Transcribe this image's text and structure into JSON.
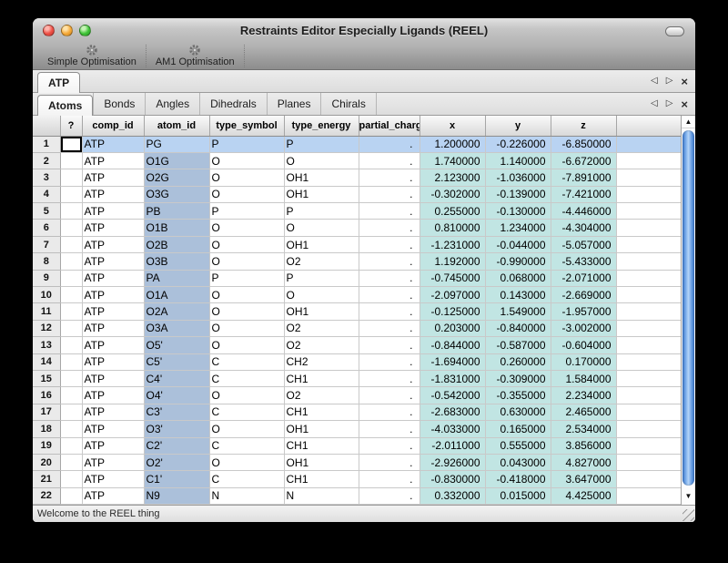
{
  "window": {
    "title": "Restraints Editor Especially Ligands (REEL)"
  },
  "toolbar": {
    "items": [
      {
        "label": "Simple Optimisation",
        "icon": "gear-icon"
      },
      {
        "label": "AM1 Optimisation",
        "icon": "gear-icon"
      }
    ]
  },
  "nav_icons": {
    "left": "◁",
    "right": "▷",
    "close": "×"
  },
  "scroll_icons": {
    "up": "▲",
    "down": "▼"
  },
  "document_tabs": [
    {
      "label": "ATP",
      "active": true
    }
  ],
  "section_tabs": [
    {
      "label": "Atoms",
      "active": true
    },
    {
      "label": "Bonds",
      "active": false
    },
    {
      "label": "Angles",
      "active": false
    },
    {
      "label": "Dihedrals",
      "active": false
    },
    {
      "label": "Planes",
      "active": false
    },
    {
      "label": "Chirals",
      "active": false
    }
  ],
  "grid": {
    "columns": [
      "?",
      "comp_id",
      "atom_id",
      "type_symbol",
      "type_energy",
      "partial_charge",
      "x",
      "y",
      "z"
    ],
    "fields": [
      "comp_id",
      "atom_id",
      "type_symbol",
      "type_energy",
      "partial_charge",
      "x",
      "y",
      "z"
    ],
    "selected_row_index": 0,
    "rows": [
      [
        "ATP",
        "PG",
        "P",
        "P",
        ".",
        "1.200000",
        "-0.226000",
        "-6.850000"
      ],
      [
        "ATP",
        "O1G",
        "O",
        "O",
        ".",
        "1.740000",
        "1.140000",
        "-6.672000"
      ],
      [
        "ATP",
        "O2G",
        "O",
        "OH1",
        ".",
        "2.123000",
        "-1.036000",
        "-7.891000"
      ],
      [
        "ATP",
        "O3G",
        "O",
        "OH1",
        ".",
        "-0.302000",
        "-0.139000",
        "-7.421000"
      ],
      [
        "ATP",
        "PB",
        "P",
        "P",
        ".",
        "0.255000",
        "-0.130000",
        "-4.446000"
      ],
      [
        "ATP",
        "O1B",
        "O",
        "O",
        ".",
        "0.810000",
        "1.234000",
        "-4.304000"
      ],
      [
        "ATP",
        "O2B",
        "O",
        "OH1",
        ".",
        "-1.231000",
        "-0.044000",
        "-5.057000"
      ],
      [
        "ATP",
        "O3B",
        "O",
        "O2",
        ".",
        "1.192000",
        "-0.990000",
        "-5.433000"
      ],
      [
        "ATP",
        "PA",
        "P",
        "P",
        ".",
        "-0.745000",
        "0.068000",
        "-2.071000"
      ],
      [
        "ATP",
        "O1A",
        "O",
        "O",
        ".",
        "-2.097000",
        "0.143000",
        "-2.669000"
      ],
      [
        "ATP",
        "O2A",
        "O",
        "OH1",
        ".",
        "-0.125000",
        "1.549000",
        "-1.957000"
      ],
      [
        "ATP",
        "O3A",
        "O",
        "O2",
        ".",
        "0.203000",
        "-0.840000",
        "-3.002000"
      ],
      [
        "ATP",
        "O5'",
        "O",
        "O2",
        ".",
        "-0.844000",
        "-0.587000",
        "-0.604000"
      ],
      [
        "ATP",
        "C5'",
        "C",
        "CH2",
        ".",
        "-1.694000",
        "0.260000",
        "0.170000"
      ],
      [
        "ATP",
        "C4'",
        "C",
        "CH1",
        ".",
        "-1.831000",
        "-0.309000",
        "1.584000"
      ],
      [
        "ATP",
        "O4'",
        "O",
        "O2",
        ".",
        "-0.542000",
        "-0.355000",
        "2.234000"
      ],
      [
        "ATP",
        "C3'",
        "C",
        "CH1",
        ".",
        "-2.683000",
        "0.630000",
        "2.465000"
      ],
      [
        "ATP",
        "O3'",
        "O",
        "OH1",
        ".",
        "-4.033000",
        "0.165000",
        "2.534000"
      ],
      [
        "ATP",
        "C2'",
        "C",
        "CH1",
        ".",
        "-2.011000",
        "0.555000",
        "3.856000"
      ],
      [
        "ATP",
        "O2'",
        "O",
        "OH1",
        ".",
        "-2.926000",
        "0.043000",
        "4.827000"
      ],
      [
        "ATP",
        "C1'",
        "C",
        "CH1",
        ".",
        "-0.830000",
        "-0.418000",
        "3.647000"
      ],
      [
        "ATP",
        "N9",
        "N",
        "N",
        ".",
        "0.332000",
        "0.015000",
        "4.425000"
      ]
    ]
  },
  "status_bar": {
    "message": "Welcome to the REEL thing"
  },
  "colors": {
    "selected_row": "#b9d3f2",
    "atom_id_column": "#abc0da",
    "coordinate_columns": "#c1e5e3",
    "scrollbar_thumb": "#6ba0e4",
    "traffic_red": "#ee4f45",
    "traffic_yellow": "#f6a937",
    "traffic_green": "#3ec437"
  }
}
